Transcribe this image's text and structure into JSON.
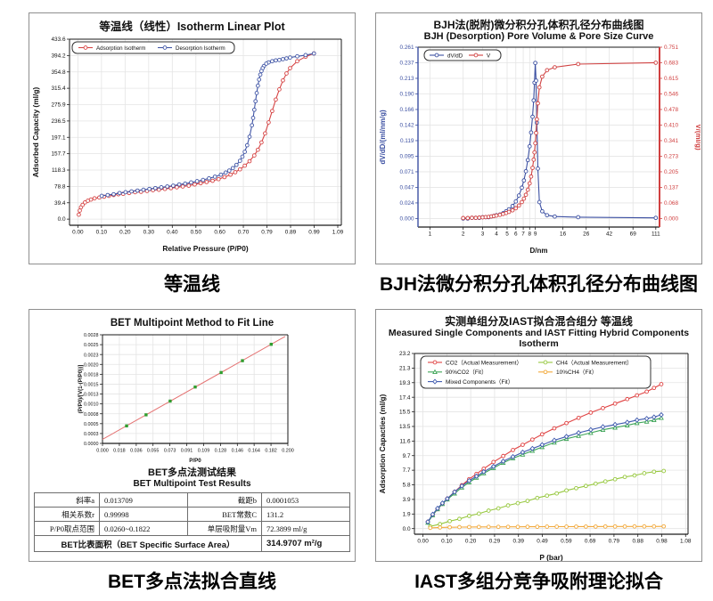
{
  "page_bg": "#ffffff",
  "panels": {
    "isotherm": {
      "caption": "等温线"
    },
    "bjh": {
      "caption": "BJH法微分积分孔体积孔径分布曲线图"
    },
    "bet": {
      "caption": "BET多点法拟合直线",
      "results_title_zh": "BET多点法测试结果",
      "results_title_en": "BET Multipoint Test Results",
      "table": {
        "rows": [
          {
            "l1": "斜率a",
            "v1": "0.013709",
            "l2": "截距b",
            "v2": "0.0001053"
          },
          {
            "l1": "相关系数r",
            "v1": "0.99998",
            "l2": "BET常数C",
            "v2": "131.2"
          },
          {
            "l1": "P/P0取点范围",
            "v1": "0.0260~0.1822",
            "l2": "单层吸附量Vm",
            "v2": "72.3899 ml/g"
          }
        ],
        "footer_label": "BET比表面积（BET Specific Surface Area）",
        "footer_value": "314.9707 m²/g"
      }
    },
    "iast": {
      "caption": "IAST多组分竞争吸附理论拟合"
    }
  },
  "chart_data": [
    {
      "id": "isotherm",
      "type": "line",
      "title": "等温线（线性）Isotherm Linear Plot",
      "xlabel": "Relative Pressure (P/P0)",
      "ylabel": "Adsorbed Capacity (ml/g)",
      "grid": true,
      "legend_position": "top-left",
      "xlim": [
        -0.035,
        1.105
      ],
      "ylim": [
        -15,
        441
      ],
      "x_ticks": [
        "0.00",
        "0.10",
        "0.20",
        "0.30",
        "0.40",
        "0.50",
        "0.60",
        "0.70",
        "0.79",
        "0.89",
        "0.99",
        "1.09"
      ],
      "x_tick_values": [
        0,
        0.099,
        0.198,
        0.297,
        0.396,
        0.495,
        0.595,
        0.694,
        0.793,
        0.892,
        0.991,
        1.09
      ],
      "y_ticks": [
        "0.0",
        "39.4",
        "78.8",
        "118.3",
        "157.7",
        "197.1",
        "236.5",
        "275.9",
        "315.4",
        "354.8",
        "394.2",
        "433.6"
      ],
      "series": [
        {
          "name": "Adsorption Isotherm",
          "color": "#d64545",
          "marker": "circle",
          "x": [
            0.004,
            0.008,
            0.013,
            0.02,
            0.03,
            0.042,
            0.055,
            0.07,
            0.09,
            0.11,
            0.13,
            0.15,
            0.17,
            0.19,
            0.215,
            0.24,
            0.265,
            0.29,
            0.315,
            0.34,
            0.365,
            0.39,
            0.415,
            0.44,
            0.465,
            0.49,
            0.515,
            0.54,
            0.565,
            0.59,
            0.615,
            0.64,
            0.66,
            0.68,
            0.7,
            0.72,
            0.74,
            0.755,
            0.77,
            0.785,
            0.8,
            0.815,
            0.83,
            0.845,
            0.86,
            0.875,
            0.89,
            0.92,
            0.955,
            0.99
          ],
          "y": [
            11,
            21,
            29,
            35,
            41,
            45,
            48,
            51,
            53,
            55,
            57,
            59,
            61,
            62,
            64,
            66,
            67,
            69,
            71,
            72,
            74,
            76,
            78,
            80,
            82,
            85,
            88,
            91,
            94,
            98,
            103,
            109,
            115,
            122,
            131,
            142,
            156,
            170,
            188,
            210,
            237,
            265,
            293,
            318,
            340,
            357,
            370,
            387,
            398,
            406
          ]
        },
        {
          "name": "Desorption Isotherm",
          "color": "#4156a6",
          "marker": "circle",
          "x": [
            0.99,
            0.955,
            0.92,
            0.89,
            0.875,
            0.86,
            0.845,
            0.83,
            0.815,
            0.8,
            0.79,
            0.78,
            0.775,
            0.77,
            0.765,
            0.76,
            0.755,
            0.75,
            0.745,
            0.74,
            0.735,
            0.73,
            0.72,
            0.71,
            0.7,
            0.69,
            0.68,
            0.665,
            0.65,
            0.635,
            0.62,
            0.6,
            0.575,
            0.55,
            0.525,
            0.5,
            0.475,
            0.45,
            0.425,
            0.4,
            0.375,
            0.35,
            0.325,
            0.3,
            0.275,
            0.25,
            0.225,
            0.2,
            0.175,
            0.15,
            0.125,
            0.1
          ],
          "y": [
            406,
            402,
            399,
            396,
            394,
            392,
            390,
            389,
            387,
            384,
            381,
            375,
            370,
            363,
            354,
            342,
            327,
            309,
            289,
            268,
            248,
            230,
            202,
            181,
            165,
            153,
            143,
            133,
            125,
            119,
            114,
            109,
            104,
            100,
            96,
            93,
            90,
            87,
            85,
            82,
            80,
            78,
            76,
            74,
            72,
            70,
            68,
            66,
            64,
            61,
            59,
            57
          ]
        }
      ]
    },
    {
      "id": "bjh",
      "type": "line",
      "title_zh": "BJH法(脱附)微分积分孔体积孔径分布曲线图",
      "title_en": "BJH (Desorption) Pore Volume & Pore Size Curve",
      "xlabel": "D/nm",
      "ylabel_left": "dV/dD/(ml/nm/g)",
      "ylabel_right": "V/(ml/g)",
      "grid": true,
      "legend_position": "top-left",
      "x_scale": "log",
      "xlim": [
        0.78,
        120
      ],
      "ylim_left": [
        -0.013,
        0.261
      ],
      "ylim_right": [
        -0.0374,
        0.751
      ],
      "x_ticks": [
        "1",
        "2",
        "3",
        "4",
        "5",
        "6",
        "7",
        "8",
        "9",
        "16",
        "26",
        "42",
        "69",
        "111"
      ],
      "x_tick_values": [
        1,
        2,
        3,
        4,
        5,
        6,
        7,
        8,
        9,
        16,
        26,
        42,
        69,
        111
      ],
      "y_ticks_left": [
        "0.000",
        "0.024",
        "0.047",
        "0.071",
        "0.095",
        "0.119",
        "0.142",
        "0.166",
        "0.190",
        "0.213",
        "0.237",
        "0.261"
      ],
      "y_ticks_right": [
        "0.000",
        "0.068",
        "0.137",
        "0.205",
        "0.273",
        "0.341",
        "0.410",
        "0.478",
        "0.546",
        "0.615",
        "0.683",
        "0.751"
      ],
      "series": [
        {
          "name": "dV/dD",
          "axis": "left",
          "color": "#3c50a2",
          "marker": "circle",
          "x": [
            2.0,
            2.2,
            2.4,
            2.6,
            2.8,
            3.0,
            3.2,
            3.4,
            3.6,
            3.8,
            4.0,
            4.3,
            4.6,
            4.9,
            5.2,
            5.6,
            6.0,
            6.4,
            6.8,
            7.1,
            7.4,
            7.7,
            8.0,
            8.25,
            8.5,
            8.7,
            8.85,
            9.0,
            9.15,
            9.3,
            9.5,
            9.8,
            10.4,
            11.5,
            13.5,
            22,
            111
          ],
          "y": [
            0.0,
            0.0,
            0.001,
            0.001,
            0.001,
            0.002,
            0.002,
            0.002,
            0.003,
            0.004,
            0.005,
            0.006,
            0.008,
            0.011,
            0.014,
            0.019,
            0.026,
            0.035,
            0.047,
            0.058,
            0.072,
            0.089,
            0.11,
            0.131,
            0.155,
            0.18,
            0.207,
            0.237,
            0.21,
            0.146,
            0.076,
            0.025,
            0.011,
            0.005,
            0.003,
            0.002,
            0.001
          ]
        },
        {
          "name": "V",
          "axis": "right",
          "color": "#d04040",
          "marker": "circle",
          "x": [
            2.0,
            2.2,
            2.4,
            2.6,
            2.8,
            3.0,
            3.2,
            3.4,
            3.6,
            3.8,
            4.0,
            4.3,
            4.6,
            4.9,
            5.2,
            5.6,
            6.0,
            6.4,
            6.8,
            7.1,
            7.4,
            7.7,
            8.0,
            8.25,
            8.5,
            8.7,
            8.85,
            9.0,
            9.15,
            9.3,
            9.5,
            9.8,
            10.4,
            11.5,
            13.5,
            22,
            111
          ],
          "y": [
            0.002,
            0.002,
            0.003,
            0.003,
            0.004,
            0.005,
            0.006,
            0.007,
            0.009,
            0.011,
            0.013,
            0.016,
            0.02,
            0.024,
            0.029,
            0.036,
            0.045,
            0.057,
            0.072,
            0.087,
            0.104,
            0.126,
            0.154,
            0.184,
            0.222,
            0.258,
            0.29,
            0.33,
            0.375,
            0.435,
            0.505,
            0.575,
            0.622,
            0.65,
            0.663,
            0.677,
            0.683
          ]
        }
      ]
    },
    {
      "id": "bet",
      "type": "scatter",
      "title": "BET Multipoint Method to Fit Line",
      "xlabel": "P/P0",
      "ylabel": "(P/P0)/[V(1-(P/P0))]",
      "grid": true,
      "xlim": [
        0,
        0.2
      ],
      "ylim": [
        0,
        0.00285
      ],
      "x_ticks": [
        "0.000",
        "0.018",
        "0.036",
        "0.055",
        "0.073",
        "0.091",
        "0.109",
        "0.128",
        "0.146",
        "0.164",
        "0.182",
        "0.200"
      ],
      "x_tick_values": [
        0,
        0.0182,
        0.0364,
        0.0545,
        0.0727,
        0.0909,
        0.1091,
        0.1273,
        0.1455,
        0.1636,
        0.1818,
        0.2
      ],
      "y_ticks": [
        "0.0000",
        "0.0003",
        "0.0005",
        "0.0008",
        "0.0010",
        "0.0013",
        "0.0015",
        "0.0018",
        "0.0020",
        "0.0023",
        "0.0025",
        "0.0028"
      ],
      "fit_line": {
        "color": "#e57373",
        "slope": 0.013709,
        "intercept": 0.0001053,
        "x_start": 0.0,
        "x_end": 0.197
      },
      "points": {
        "color": "#2f9e2f",
        "marker": "square",
        "x": [
          0.026,
          0.047,
          0.073,
          0.1,
          0.128,
          0.151,
          0.182
        ],
        "y": [
          0.00046,
          0.00075,
          0.00111,
          0.00148,
          0.00186,
          0.00217,
          0.0026
        ]
      }
    },
    {
      "id": "iast",
      "type": "line",
      "title_zh": "实测单组分及IAST拟合混合组分 等温线",
      "title_en": "Measured Single Components and IAST Fitting Hybrid Components Isotherm",
      "xlabel": "P (bar)",
      "ylabel": "Adsorption Capacties (ml/g)",
      "grid": true,
      "legend_position": "top-left",
      "xlim": [
        -0.035,
        1.09
      ],
      "ylim": [
        -0.75,
        23.4
      ],
      "x_ticks": [
        "0.00",
        "0.10",
        "0.20",
        "0.29",
        "0.39",
        "0.49",
        "0.59",
        "0.69",
        "0.79",
        "0.88",
        "0.98",
        "1.08"
      ],
      "x_tick_values": [
        0,
        0.0982,
        0.1964,
        0.2945,
        0.3927,
        0.4909,
        0.5891,
        0.6873,
        0.7855,
        0.8836,
        0.9818,
        1.08
      ],
      "y_ticks": [
        "0.0",
        "1.9",
        "3.9",
        "5.8",
        "7.7",
        "9.7",
        "11.6",
        "13.5",
        "15.5",
        "17.4",
        "19.3",
        "21.3",
        "23.2"
      ],
      "series": [
        {
          "name": "CO2（Actual Measurement）",
          "color": "#e04343",
          "marker": "circle",
          "x": [
            0.02,
            0.04,
            0.06,
            0.08,
            0.1,
            0.13,
            0.16,
            0.19,
            0.22,
            0.25,
            0.29,
            0.33,
            0.37,
            0.41,
            0.45,
            0.49,
            0.54,
            0.59,
            0.64,
            0.69,
            0.74,
            0.79,
            0.84,
            0.88,
            0.92,
            0.95,
            0.98
          ],
          "y": [
            0.9,
            1.8,
            2.6,
            3.3,
            4.0,
            4.9,
            5.8,
            6.6,
            7.3,
            8.0,
            8.9,
            9.7,
            10.5,
            11.2,
            11.9,
            12.6,
            13.4,
            14.1,
            14.8,
            15.5,
            16.1,
            16.7,
            17.3,
            17.8,
            18.3,
            18.8,
            19.3
          ]
        },
        {
          "name": "CH4（Actual Measurement）",
          "color": "#97c83f",
          "marker": "circle",
          "x": [
            0.03,
            0.07,
            0.11,
            0.15,
            0.19,
            0.23,
            0.27,
            0.31,
            0.35,
            0.39,
            0.43,
            0.47,
            0.51,
            0.55,
            0.59,
            0.63,
            0.67,
            0.71,
            0.75,
            0.79,
            0.83,
            0.87,
            0.91,
            0.95,
            0.99
          ],
          "y": [
            0.3,
            0.6,
            1.0,
            1.3,
            1.7,
            2.0,
            2.4,
            2.7,
            3.1,
            3.4,
            3.7,
            4.1,
            4.4,
            4.7,
            5.1,
            5.4,
            5.7,
            6.0,
            6.3,
            6.6,
            6.9,
            7.1,
            7.4,
            7.6,
            7.7
          ]
        },
        {
          "name": "90%CO2（Fit）",
          "color": "#3da457",
          "marker": "triangle",
          "x": [
            0.02,
            0.04,
            0.06,
            0.08,
            0.1,
            0.13,
            0.16,
            0.19,
            0.22,
            0.25,
            0.29,
            0.33,
            0.37,
            0.41,
            0.45,
            0.49,
            0.54,
            0.59,
            0.64,
            0.69,
            0.74,
            0.79,
            0.84,
            0.88,
            0.92,
            0.95,
            0.98
          ],
          "y": [
            0.8,
            1.8,
            2.6,
            3.3,
            3.9,
            4.7,
            5.5,
            6.2,
            6.8,
            7.4,
            8.1,
            8.8,
            9.4,
            9.9,
            10.4,
            10.9,
            11.5,
            12.0,
            12.4,
            12.8,
            13.2,
            13.5,
            13.8,
            14.1,
            14.3,
            14.5,
            14.8
          ]
        },
        {
          "name": "10%CH4（Fit）",
          "color": "#f2a93b",
          "marker": "circle",
          "x": [
            0.03,
            0.07,
            0.11,
            0.15,
            0.19,
            0.23,
            0.27,
            0.31,
            0.35,
            0.39,
            0.43,
            0.47,
            0.51,
            0.55,
            0.59,
            0.63,
            0.67,
            0.71,
            0.75,
            0.79,
            0.83,
            0.87,
            0.91,
            0.95,
            0.99
          ],
          "y": [
            0.1,
            0.15,
            0.18,
            0.2,
            0.21,
            0.22,
            0.23,
            0.23,
            0.24,
            0.24,
            0.25,
            0.25,
            0.26,
            0.26,
            0.26,
            0.27,
            0.27,
            0.27,
            0.28,
            0.28,
            0.28,
            0.29,
            0.29,
            0.29,
            0.3
          ]
        },
        {
          "name": "Mixed Components（Fit）",
          "color": "#3f5aae",
          "marker": "diamond",
          "x": [
            0.02,
            0.04,
            0.06,
            0.08,
            0.1,
            0.13,
            0.16,
            0.19,
            0.22,
            0.25,
            0.29,
            0.33,
            0.37,
            0.41,
            0.45,
            0.49,
            0.54,
            0.59,
            0.64,
            0.69,
            0.74,
            0.79,
            0.84,
            0.88,
            0.92,
            0.95,
            0.98
          ],
          "y": [
            0.9,
            1.9,
            2.7,
            3.4,
            4.0,
            4.9,
            5.7,
            6.4,
            7.0,
            7.6,
            8.3,
            9.0,
            9.6,
            10.2,
            10.7,
            11.2,
            11.8,
            12.3,
            12.8,
            13.2,
            13.6,
            13.9,
            14.2,
            14.5,
            14.7,
            14.9,
            15.2
          ]
        }
      ]
    }
  ]
}
